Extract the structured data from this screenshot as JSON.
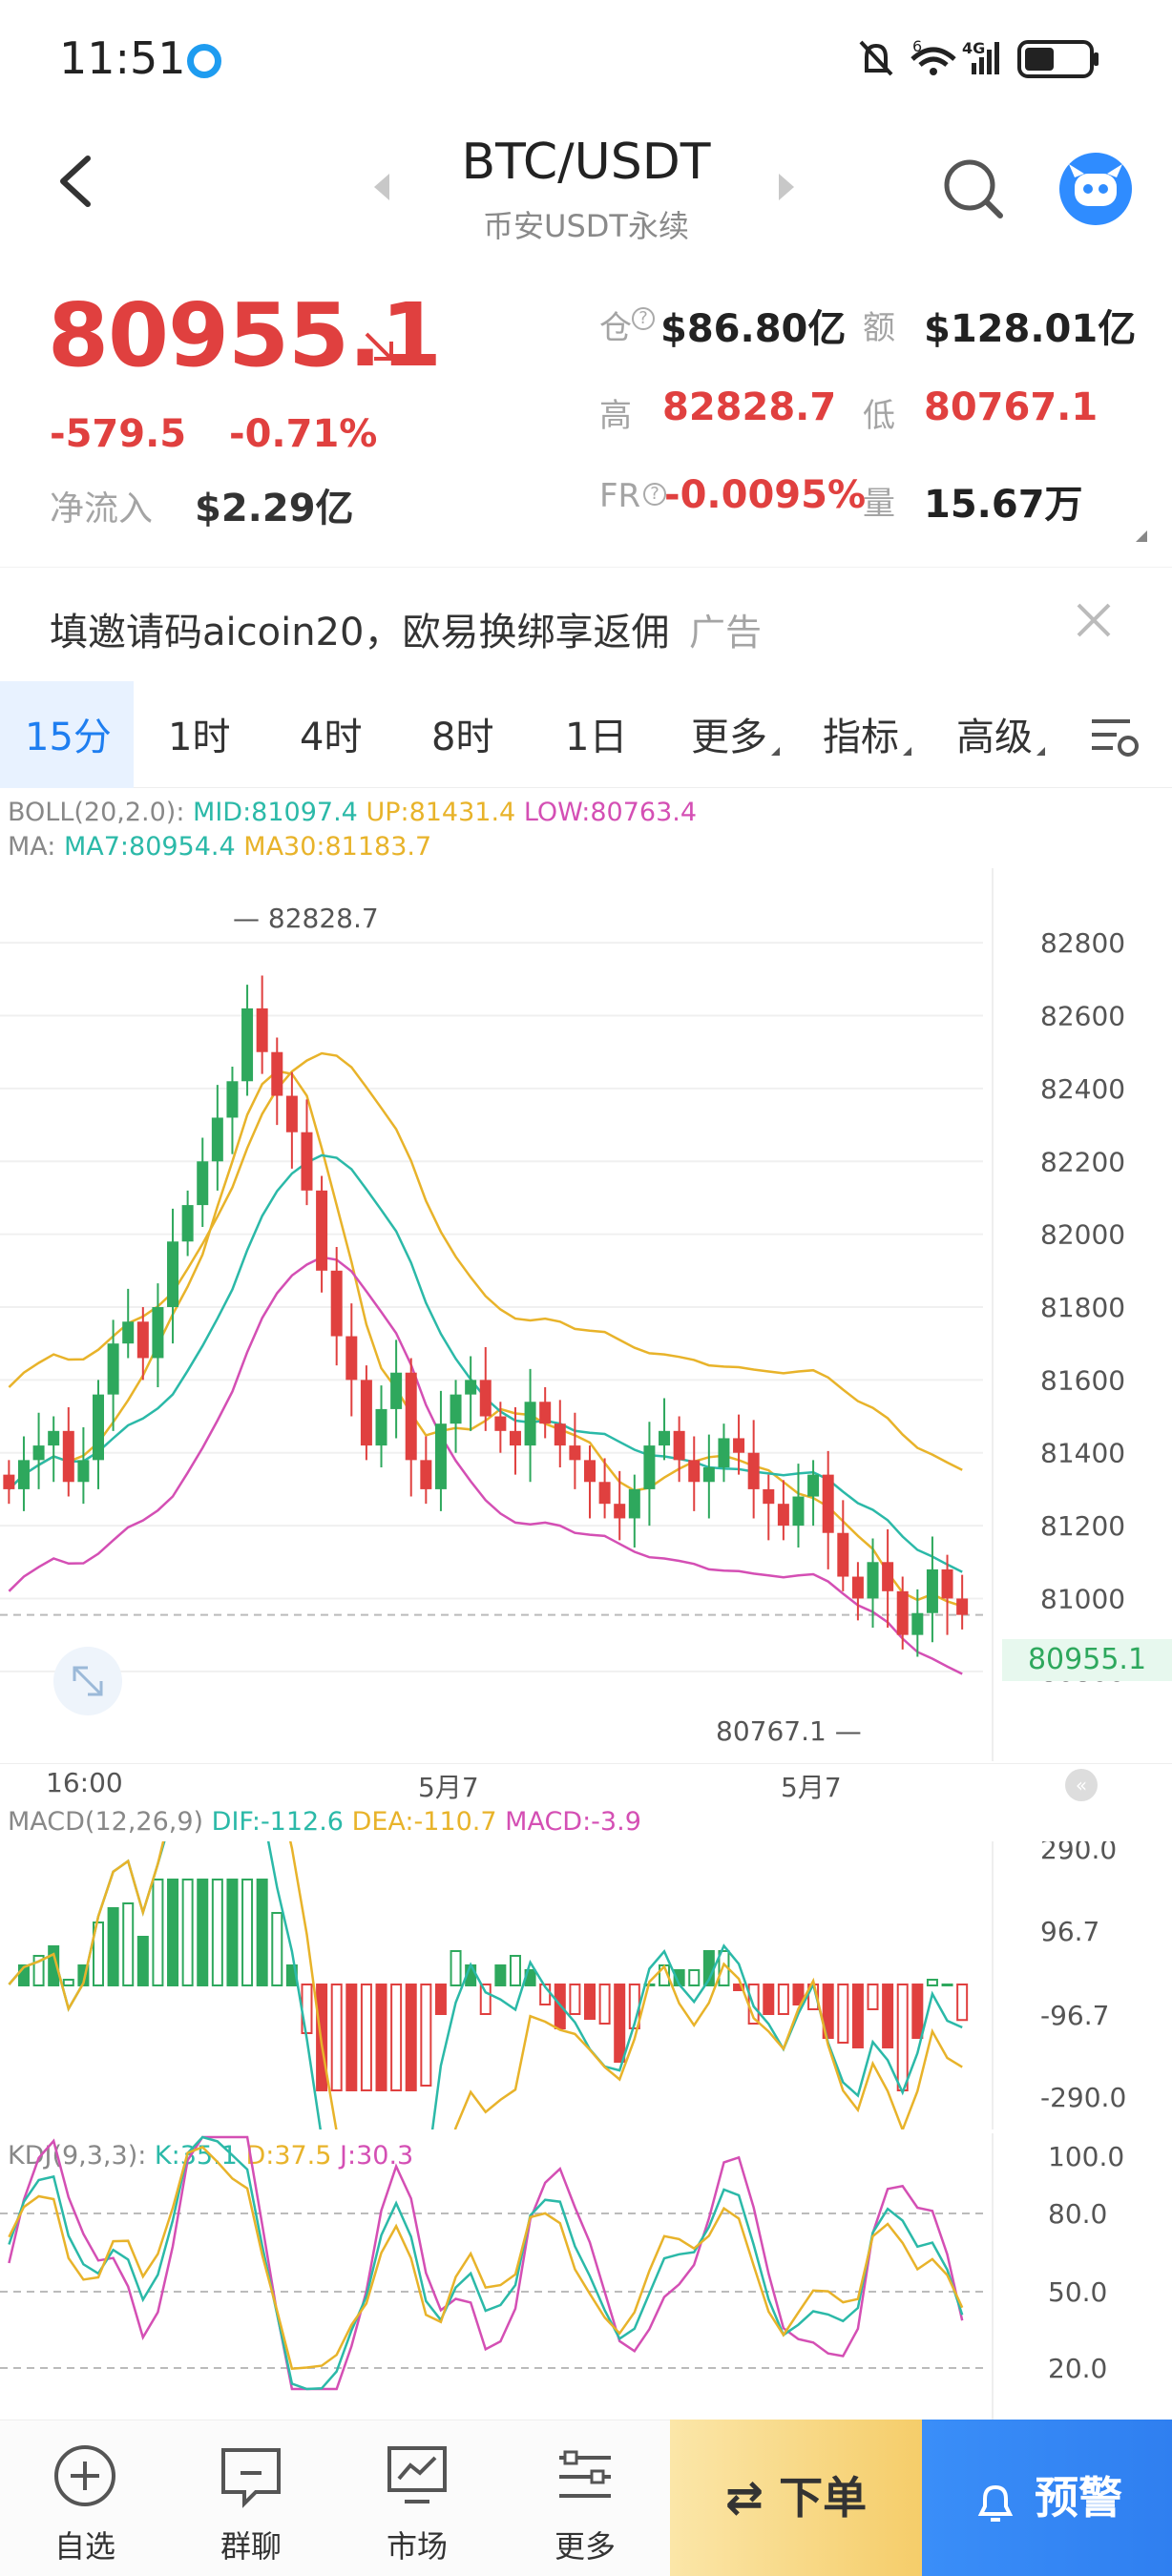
{
  "status_bar": {
    "time": "11:51",
    "network": "4G",
    "signal_sup": "6"
  },
  "header": {
    "pair": "BTC/USDT",
    "subtitle": "币安USDT永续"
  },
  "price": {
    "last": "80955.1",
    "change": "-579.5",
    "change_pct": "-0.71%",
    "inflow_label": "净流入",
    "inflow_value": "$2.29亿"
  },
  "stats": {
    "oi_label": "仓",
    "oi_value": "$86.80亿",
    "amount_label": "额",
    "amount_value": "$128.01亿",
    "high_label": "高",
    "high_value": "82828.7",
    "low_label": "低",
    "low_value": "80767.1",
    "fr_label": "FR",
    "fr_value": "-0.0095%",
    "volume_label": "量",
    "volume_value": "15.67万"
  },
  "ad": {
    "text": "填邀请码aicoin20，欧易换绑享返佣",
    "tag": "广告"
  },
  "tabs": [
    {
      "label": "15分",
      "active": true
    },
    {
      "label": "1时"
    },
    {
      "label": "4时"
    },
    {
      "label": "8时"
    },
    {
      "label": "1日"
    },
    {
      "label": "更多"
    },
    {
      "label": "指标"
    },
    {
      "label": "高级"
    }
  ],
  "indicators": {
    "boll_name": "BOLL(20,2.0):",
    "boll_mid": "MID:81097.4",
    "boll_up": "UP:81431.4",
    "boll_low": "LOW:80763.4",
    "ma_name": "MA:",
    "ma7": "MA7:80954.4",
    "ma30": "MA30:81183.7",
    "macd_name": "MACD(12,26,9)",
    "macd_dif": "DIF:-112.6",
    "macd_dea": "DEA:-110.7",
    "macd_val": "MACD:-3.9",
    "kdj_name": "KDJ(9,3,3):",
    "kdj_k": "K:35.1",
    "kdj_d": "D:37.5",
    "kdj_j": "J:30.3"
  },
  "chart_data": {
    "type": "candlestick",
    "y_ticks": [
      "82800",
      "82600",
      "82400",
      "82200",
      "82000",
      "81800",
      "81600",
      "81400",
      "81200",
      "81000",
      "80800"
    ],
    "ylim": [
      80700,
      82900
    ],
    "x_ticks": [
      "16:00",
      "5月7",
      "5月7"
    ],
    "high_label": "82828.7",
    "low_label": "80767.1",
    "current_price": "80955.1",
    "closes": [
      81300,
      81380,
      81420,
      81460,
      81320,
      81380,
      81560,
      81700,
      81760,
      81660,
      81800,
      81980,
      82080,
      82200,
      82320,
      82420,
      82620,
      82500,
      82380,
      82280,
      82120,
      81900,
      81720,
      81600,
      81420,
      81520,
      81620,
      81380,
      81300,
      81480,
      81560,
      81600,
      81500,
      81460,
      81420,
      81540,
      81480,
      81420,
      81380,
      81320,
      81260,
      81220,
      81300,
      81420,
      81460,
      81380,
      81320,
      81360,
      81440,
      81400,
      81300,
      81260,
      81200,
      81280,
      81340,
      81180,
      81060,
      81000,
      81100,
      81020,
      80900,
      80960,
      81080,
      81000,
      80955
    ],
    "macd_ticks": [
      "290.0",
      "96.7",
      "-96.7",
      "-290.0"
    ],
    "kdj_ticks": [
      "100.0",
      "80.0",
      "50.0",
      "20.0"
    ]
  },
  "bottom_nav": [
    {
      "label": "自选"
    },
    {
      "label": "群聊"
    },
    {
      "label": "市场"
    },
    {
      "label": "更多"
    }
  ],
  "actions": {
    "order": "下单",
    "alert": "预警"
  },
  "colors": {
    "up": "#e0403f",
    "down": "#2ea85d",
    "accent": "#1e7ef0"
  }
}
